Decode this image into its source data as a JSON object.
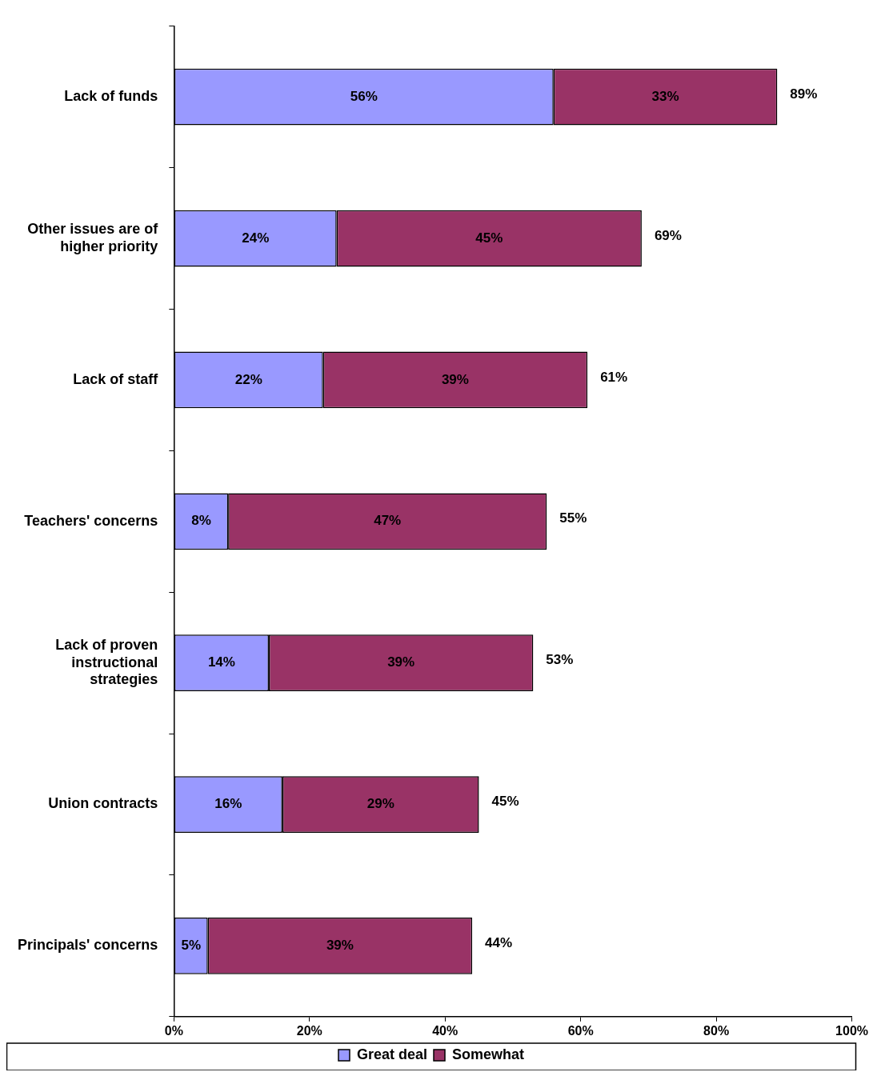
{
  "chart_data": {
    "type": "bar",
    "orientation": "horizontal",
    "stacked": true,
    "categories": [
      "Lack of funds",
      "Other issues are of higher priority",
      "Lack of staff",
      "Teachers' concerns",
      "Lack of proven instructional strategies",
      "Union contracts",
      "Principals' concerns"
    ],
    "series": [
      {
        "name": "Great deal",
        "color": "#9999ff",
        "values": [
          56,
          24,
          22,
          8,
          14,
          16,
          5
        ],
        "value_labels": [
          "56%",
          "24%",
          "22%",
          "8%",
          "14%",
          "16%",
          "5%"
        ]
      },
      {
        "name": "Somewhat",
        "color": "#993366",
        "values": [
          33,
          45,
          39,
          47,
          39,
          29,
          39
        ],
        "value_labels": [
          "33%",
          "45%",
          "39%",
          "47%",
          "39%",
          "29%",
          "39%"
        ]
      }
    ],
    "totals": [
      "89%",
      "69%",
      "61%",
      "55%",
      "53%",
      "45%",
      "44%"
    ],
    "xlim": [
      0,
      100
    ],
    "xticks": [
      {
        "value": 0,
        "label": "0%"
      },
      {
        "value": 20,
        "label": "20%"
      },
      {
        "value": 40,
        "label": "40%"
      },
      {
        "value": 60,
        "label": "60%"
      },
      {
        "value": 80,
        "label": "80%"
      },
      {
        "value": 100,
        "label": "100%"
      }
    ],
    "grid": false,
    "legend": "bottom"
  }
}
